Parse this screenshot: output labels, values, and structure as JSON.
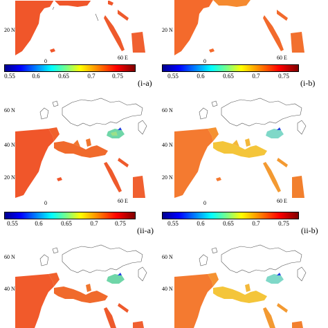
{
  "colorbar": {
    "ticks": [
      "0.55",
      "0.6",
      "0.65",
      "0.7",
      "0.75"
    ],
    "values": [
      0.55,
      0.6,
      0.65,
      0.7,
      0.75
    ],
    "range": [
      0.52,
      0.78
    ],
    "colormap": "jet"
  },
  "axes": {
    "lat_60": "60 N",
    "lat_40": "40 N",
    "lat_20": "20 N",
    "lon_0": "0",
    "lon_60": "60 E"
  },
  "panels": [
    {
      "label": "(i-a)",
      "fill": "#f0562a"
    },
    {
      "label": "(i-b)",
      "fill": "#f46a2c"
    },
    {
      "label": "(ii-a)",
      "fill": "#f15a2b"
    },
    {
      "label": "(ii-b)",
      "fill": "#f47a30"
    },
    {
      "label": "",
      "fill": "#f15a2b"
    },
    {
      "label": "",
      "fill": "#f47a30"
    }
  ],
  "colors": {
    "sea_red": "#f0552a",
    "sea_orange": "#f7922f",
    "sea_yellow": "#f4c53a",
    "black_sea": "#6fd6a8",
    "coast": "#555555"
  }
}
